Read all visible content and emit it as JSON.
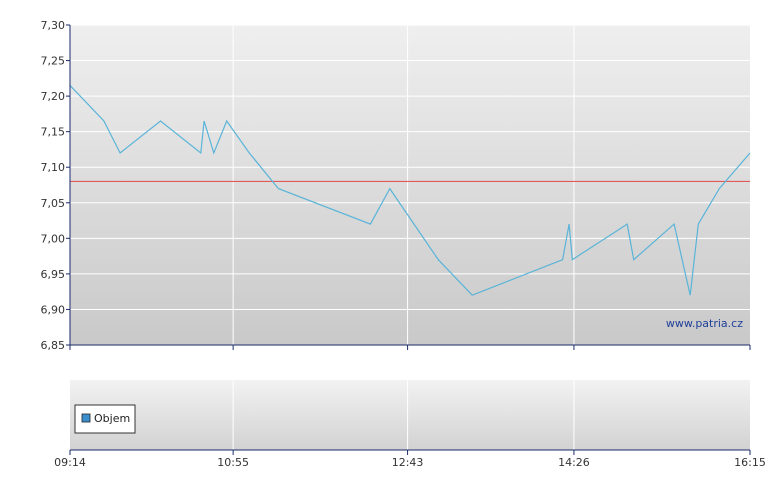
{
  "chart_data": [
    {
      "type": "line",
      "title": "",
      "xlabel": "",
      "ylabel": "",
      "ylim": [
        6.85,
        7.3
      ],
      "y_ticks": [
        "6,85",
        "6,90",
        "6,95",
        "7,00",
        "7,05",
        "7,10",
        "7,15",
        "7,20",
        "7,25",
        "7,30"
      ],
      "x_ticks": [
        "09:14",
        "10:55",
        "12:43",
        "14:26",
        "16:15"
      ],
      "grid": true,
      "reference_line": {
        "value": 7.08,
        "color": "#e05a5a"
      },
      "series": [
        {
          "color": "#5ab4d8",
          "points": [
            {
              "x": "09:14",
              "y": 7.215
            },
            {
              "x": "09:35",
              "y": 7.165
            },
            {
              "x": "09:45",
              "y": 7.12
            },
            {
              "x": "10:10",
              "y": 7.165
            },
            {
              "x": "10:35",
              "y": 7.12
            },
            {
              "x": "10:37",
              "y": 7.165
            },
            {
              "x": "10:43",
              "y": 7.12
            },
            {
              "x": "10:51",
              "y": 7.165
            },
            {
              "x": "11:05",
              "y": 7.12
            },
            {
              "x": "11:23",
              "y": 7.07
            },
            {
              "x": "12:20",
              "y": 7.02
            },
            {
              "x": "12:32",
              "y": 7.07
            },
            {
              "x": "12:47",
              "y": 7.02
            },
            {
              "x": "13:02",
              "y": 6.97
            },
            {
              "x": "13:23",
              "y": 6.92
            },
            {
              "x": "14:19",
              "y": 6.97
            },
            {
              "x": "14:23",
              "y": 7.02
            },
            {
              "x": "14:25",
              "y": 6.97
            },
            {
              "x": "14:59",
              "y": 7.02
            },
            {
              "x": "15:03",
              "y": 6.97
            },
            {
              "x": "15:28",
              "y": 7.02
            },
            {
              "x": "15:38",
              "y": 6.92
            },
            {
              "x": "15:43",
              "y": 7.02
            },
            {
              "x": "15:56",
              "y": 7.07
            },
            {
              "x": "16:15",
              "y": 7.12
            }
          ]
        }
      ]
    },
    {
      "type": "bar",
      "title": "",
      "legend": [
        "Objem"
      ],
      "legend_color": "#3c8fcf",
      "x_ticks": [
        "09:14",
        "10:55",
        "12:43",
        "14:26",
        "16:15"
      ],
      "series": [
        {
          "name": "Objem",
          "values": []
        }
      ]
    }
  ],
  "watermark": "www.patria.cz"
}
